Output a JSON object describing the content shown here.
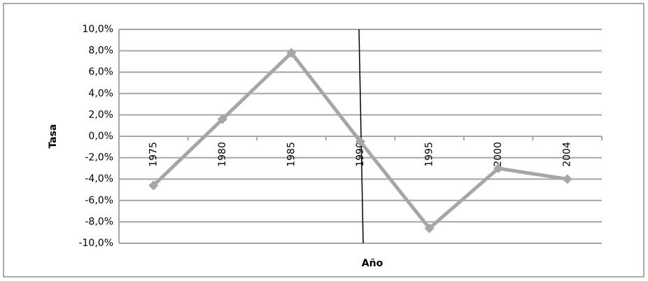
{
  "chart_data": {
    "type": "line",
    "x_label": "Año",
    "y_label": "Tasa",
    "categories": [
      "1975",
      "1980",
      "1985",
      "1990",
      "1995",
      "2000",
      "2004"
    ],
    "series": [
      {
        "name": "Tasa",
        "color": "#a6a6a6",
        "values": [
          -4.6,
          1.6,
          7.8,
          -0.5,
          -8.6,
          -3.0,
          -4.0
        ]
      }
    ],
    "ylim": [
      -10,
      10
    ],
    "yticks": [
      {
        "value": 10,
        "label": "10,0%"
      },
      {
        "value": 8,
        "label": "8,0%"
      },
      {
        "value": 6,
        "label": "6,0%"
      },
      {
        "value": 4,
        "label": "4,0%"
      },
      {
        "value": 2,
        "label": "2,0%"
      },
      {
        "value": 0,
        "label": "0,0%"
      },
      {
        "value": -2,
        "label": "-2,0%"
      },
      {
        "value": -4,
        "label": "-4,0%"
      },
      {
        "value": -6,
        "label": "-6,0%"
      },
      {
        "value": -8,
        "label": "-8,0%"
      },
      {
        "value": -10,
        "label": "-10,0%"
      }
    ],
    "grid": true,
    "highlight_category": "1990"
  }
}
